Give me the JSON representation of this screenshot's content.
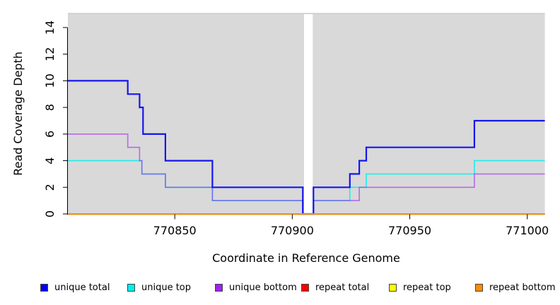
{
  "chart_data": {
    "type": "line",
    "subtype": "step",
    "title": "",
    "xlabel": "Coordinate in Reference Genome",
    "ylabel": "Read Coverage Depth",
    "x_domain": [
      770804.5,
      771007.5
    ],
    "y_domain": [
      0,
      15.1
    ],
    "x_ticks": [
      770850,
      770900,
      770950,
      771000
    ],
    "x_tick_labels": [
      "770850",
      "770900",
      "770950",
      "771000"
    ],
    "y_ticks": [
      0,
      2,
      4,
      6,
      8,
      10,
      12,
      14
    ],
    "grid": false,
    "plot_bg": "#D9D9D9",
    "gap_region": {
      "x_start": 770905.0,
      "x_end": 770908.7,
      "color": "#FFFFFF"
    },
    "legend_position": "bottom",
    "series": [
      {
        "name": "unique total",
        "color": "#0000EE",
        "points": [
          [
            770804.5,
            10
          ],
          [
            770830,
            10
          ],
          [
            770830,
            9
          ],
          [
            770835,
            9
          ],
          [
            770835,
            8
          ],
          [
            770836.5,
            8
          ],
          [
            770836.5,
            6
          ],
          [
            770846,
            6
          ],
          [
            770846,
            4
          ],
          [
            770866,
            4
          ],
          [
            770866,
            2
          ],
          [
            770904.5,
            2
          ],
          [
            770904.5,
            0
          ],
          [
            770909,
            0
          ],
          [
            770909,
            2
          ],
          [
            770924.5,
            2
          ],
          [
            770924.5,
            3
          ],
          [
            770928.5,
            3
          ],
          [
            770928.5,
            4
          ],
          [
            770931.5,
            4
          ],
          [
            770931.5,
            5
          ],
          [
            770977.5,
            5
          ],
          [
            770977.5,
            7
          ],
          [
            771007.5,
            7
          ]
        ]
      },
      {
        "name": "unique top",
        "color": "#00EEEE",
        "points": [
          [
            770804.5,
            4
          ],
          [
            770836,
            4
          ],
          [
            770836,
            3
          ],
          [
            770846,
            3
          ],
          [
            770846,
            2
          ],
          [
            770866,
            2
          ],
          [
            770866,
            1
          ],
          [
            770904.5,
            1
          ],
          [
            770904.5,
            0
          ],
          [
            770909,
            0
          ],
          [
            770909,
            1
          ],
          [
            770924.5,
            1
          ],
          [
            770924.5,
            2
          ],
          [
            770931.5,
            2
          ],
          [
            770931.5,
            3
          ],
          [
            770977.5,
            3
          ],
          [
            770977.5,
            4
          ],
          [
            771007.5,
            4
          ]
        ]
      },
      {
        "name": "unique bottom",
        "color": "#A020F0",
        "points": [
          [
            770804.5,
            6
          ],
          [
            770830,
            6
          ],
          [
            770830,
            5
          ],
          [
            770835,
            5
          ],
          [
            770835,
            4
          ],
          [
            770836,
            4
          ],
          [
            770836,
            3
          ],
          [
            770846,
            3
          ],
          [
            770846,
            2
          ],
          [
            770866,
            2
          ],
          [
            770866,
            1
          ],
          [
            770904.5,
            1
          ],
          [
            770904.5,
            0
          ],
          [
            770909,
            0
          ],
          [
            770909,
            1
          ],
          [
            770928.5,
            1
          ],
          [
            770928.5,
            2
          ],
          [
            770977.5,
            2
          ],
          [
            770977.5,
            3
          ],
          [
            771007.5,
            3
          ]
        ]
      },
      {
        "name": "repeat total",
        "color": "#FF0000",
        "points": [
          [
            770804.5,
            0
          ],
          [
            771007.5,
            0
          ]
        ]
      },
      {
        "name": "repeat top",
        "color": "#FFFF00",
        "points": [
          [
            770804.5,
            0
          ],
          [
            771007.5,
            0
          ]
        ]
      },
      {
        "name": "repeat bottom",
        "color": "#FF8C00",
        "points": [
          [
            770804.5,
            0
          ],
          [
            771007.5,
            0
          ]
        ]
      }
    ]
  }
}
